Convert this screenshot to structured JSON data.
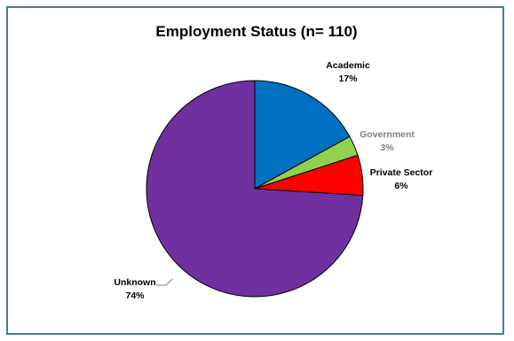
{
  "chart_data": {
    "type": "pie",
    "title": "Employment Status (n= 110)",
    "slices": [
      {
        "label": "Academic",
        "value": 17,
        "value_label": "17%",
        "color": "#0070c0",
        "label_color": "#000000"
      },
      {
        "label": "Government",
        "value": 3,
        "value_label": "3%",
        "color": "#92d050",
        "label_color": "#7f7f7f"
      },
      {
        "label": "Private Sector",
        "value": 6,
        "value_label": "6%",
        "color": "#ff0000",
        "label_color": "#000000"
      },
      {
        "label": "Unknown",
        "value": 74,
        "value_label": "74%",
        "color": "#7030a0",
        "label_color": "#000000"
      }
    ],
    "start": "12 o'clock",
    "direction": "clockwise",
    "legend": "none"
  },
  "colors": {
    "border": "#4a78a8",
    "slice_outline": "#000000"
  }
}
